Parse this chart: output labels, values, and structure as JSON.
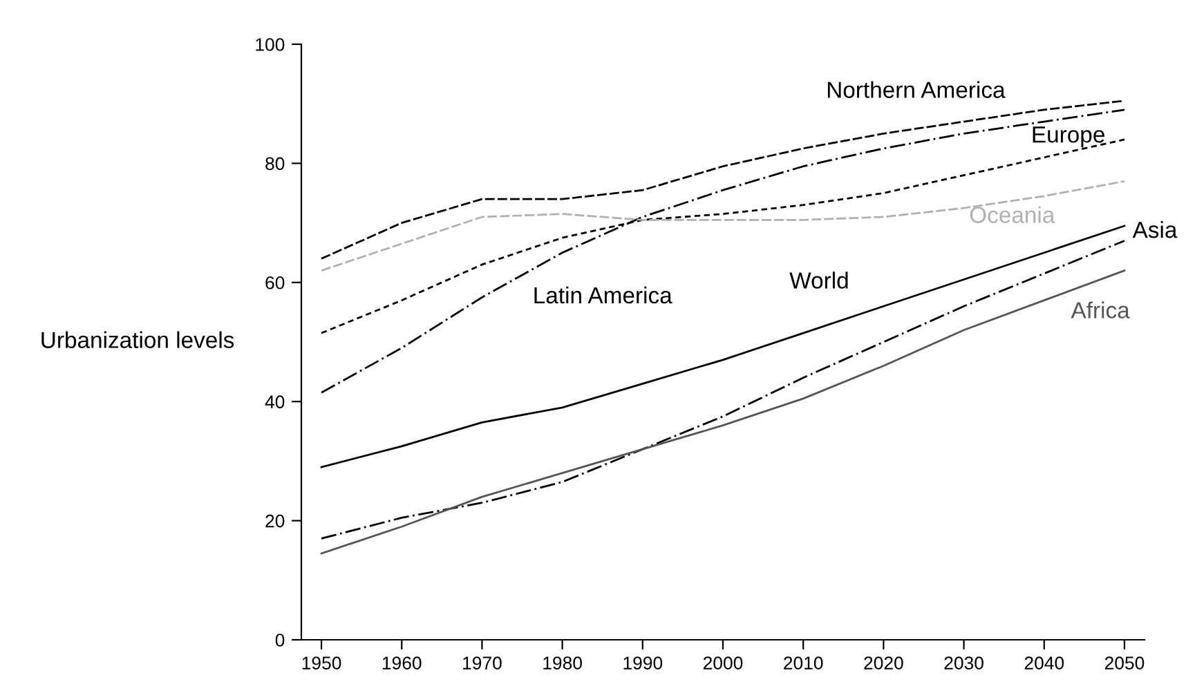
{
  "chart_data": {
    "type": "line",
    "ylabel": "Urbanization levels",
    "x": [
      1950,
      1960,
      1970,
      1980,
      1990,
      2000,
      2010,
      2020,
      2030,
      2040,
      2050
    ],
    "xlim": [
      1947.5,
      2052.5
    ],
    "xticks": [
      1950,
      1960,
      1970,
      1980,
      1990,
      2000,
      2010,
      2020,
      2030,
      2040,
      2050
    ],
    "ylim": [
      0,
      100
    ],
    "yticks": [
      0,
      20,
      40,
      60,
      80,
      100
    ],
    "grid": false,
    "legend": false,
    "marker": "none",
    "series": [
      {
        "name": "Northern America",
        "color": "#000000",
        "line_style": "dashed",
        "values": [
          64,
          70,
          74,
          74,
          75.5,
          79.5,
          82.5,
          85,
          87,
          89,
          90.5
        ]
      },
      {
        "name": "Latin America",
        "color": "#000000",
        "line_style": "dashdot",
        "values": [
          41.5,
          49,
          57.5,
          65,
          71,
          75.5,
          79.5,
          82.5,
          85,
          87,
          89
        ]
      },
      {
        "name": "Europe",
        "color": "#000000",
        "line_style": "dotted",
        "values": [
          51.5,
          57,
          63,
          67.5,
          70.5,
          71.5,
          73,
          75,
          78,
          81,
          84
        ]
      },
      {
        "name": "Oceania",
        "color": "#b0b0b0",
        "line_style": "dashed",
        "values": [
          62,
          66.5,
          71,
          71.5,
          70.5,
          70.5,
          70.5,
          71,
          72.5,
          74.5,
          77
        ]
      },
      {
        "name": "World",
        "color": "#000000",
        "line_style": "solid",
        "values": [
          29,
          32.5,
          36.5,
          39,
          43,
          47,
          51.5,
          56,
          60.5,
          65,
          69.5
        ]
      },
      {
        "name": "Asia",
        "color": "#000000",
        "line_style": "dashdot",
        "values": [
          17,
          20.5,
          23,
          26.5,
          32,
          37.5,
          44,
          50,
          56,
          61.5,
          67
        ]
      },
      {
        "name": "Africa",
        "color": "#555555",
        "line_style": "solid",
        "values": [
          14.5,
          19,
          24,
          28,
          32,
          36,
          40.5,
          46,
          52,
          57,
          62
        ]
      }
    ]
  }
}
